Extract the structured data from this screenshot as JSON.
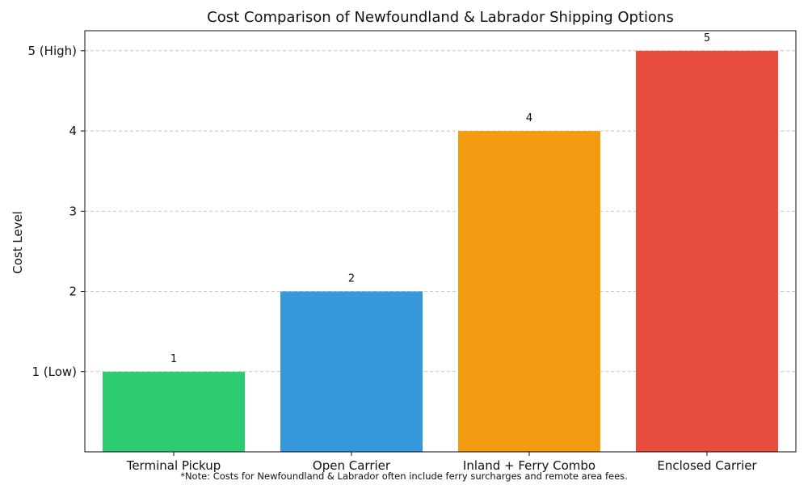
{
  "chart_data": {
    "type": "bar",
    "title": "Cost Comparison of Newfoundland & Labrador Shipping Options",
    "xlabel": "",
    "ylabel": "Cost Level",
    "categories": [
      "Terminal Pickup",
      "Open Carrier",
      "Inland + Ferry Combo",
      "Enclosed Carrier"
    ],
    "values": [
      1,
      2,
      4,
      5
    ],
    "data_labels": [
      "1",
      "2",
      "4",
      "5"
    ],
    "colors": [
      "#2ecc71",
      "#3498db",
      "#f39c12",
      "#e74c3c"
    ],
    "ylim": [
      0,
      5.25
    ],
    "yticks": [
      {
        "value": 1,
        "label": "1 (Low)"
      },
      {
        "value": 2,
        "label": "2"
      },
      {
        "value": 3,
        "label": "3"
      },
      {
        "value": 4,
        "label": "4"
      },
      {
        "value": 5,
        "label": "5 (High)"
      }
    ],
    "grid": "horizontal dashed",
    "legend": "none"
  },
  "note": "*Note: Costs for Newfoundland & Labrador often include ferry surcharges and remote area fees."
}
